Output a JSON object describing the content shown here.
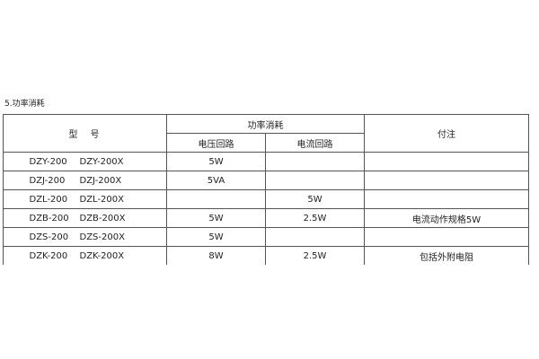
{
  "section_title": "5.功率消耗",
  "table": {
    "header": {
      "model": "型　号",
      "power": "功率消耗",
      "voltage_circuit": "电压回路",
      "current_circuit": "电流回路",
      "note": "付注"
    },
    "rows": [
      {
        "model_a": "DZY-200",
        "model_b": "DZY-200X",
        "voltage": "5W",
        "current": "",
        "note": ""
      },
      {
        "model_a": "DZJ-200",
        "model_b": "DZJ-200X",
        "voltage": "5VA",
        "current": "",
        "note": ""
      },
      {
        "model_a": "DZL-200",
        "model_b": "DZL-200X",
        "voltage": "",
        "current": "5W",
        "note": ""
      },
      {
        "model_a": "DZB-200",
        "model_b": "DZB-200X",
        "voltage": "5W",
        "current": "2.5W",
        "note": "电流动作规格5W"
      },
      {
        "model_a": "DZS-200",
        "model_b": "DZS-200X",
        "voltage": "5W",
        "current": "",
        "note": ""
      },
      {
        "model_a": "DZK-200",
        "model_b": "DZK-200X",
        "voltage": "8W",
        "current": "2.5W",
        "note": "包括外附电阻"
      }
    ]
  }
}
